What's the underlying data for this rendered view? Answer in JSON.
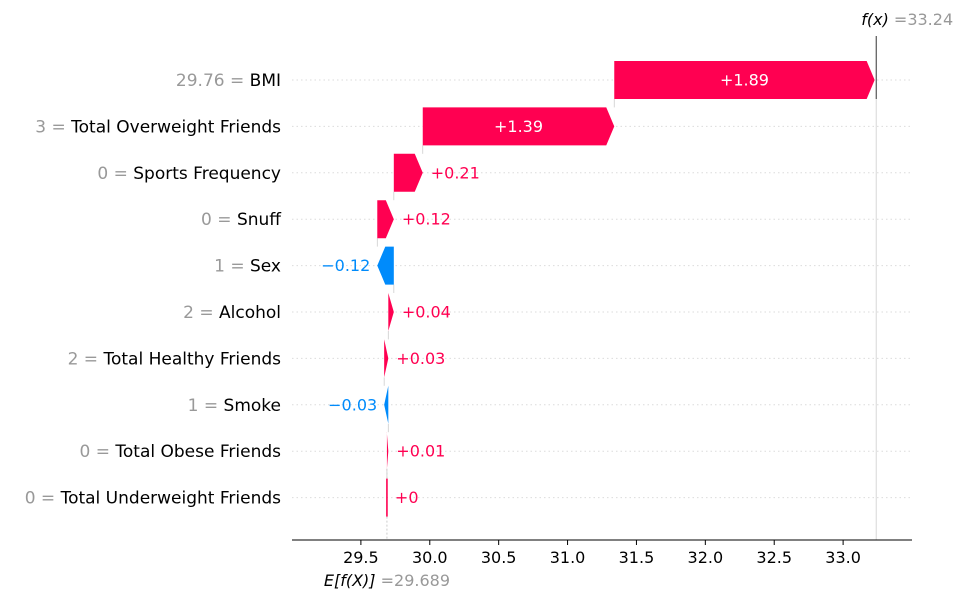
{
  "chart_data": {
    "type": "waterfall",
    "base_value": 29.689,
    "base_value_label": "29.689",
    "base_label": "E[f(X)]",
    "output_value": 33.24,
    "output_value_label": "33.24",
    "output_label": "f(x)",
    "equals_sign": "=",
    "features": [
      {
        "value": "29.76",
        "name": "BMI",
        "contribution": 1.89,
        "label": "+1.89"
      },
      {
        "value": "3",
        "name": "Total Overweight Friends",
        "contribution": 1.39,
        "label": "+1.39"
      },
      {
        "value": "0",
        "name": "Sports Frequency",
        "contribution": 0.21,
        "label": "+0.21"
      },
      {
        "value": "0",
        "name": "Snuff",
        "contribution": 0.12,
        "label": "+0.12"
      },
      {
        "value": "1",
        "name": "Sex",
        "contribution": -0.12,
        "label": "−0.12"
      },
      {
        "value": "2",
        "name": "Alcohol",
        "contribution": 0.04,
        "label": "+0.04"
      },
      {
        "value": "2",
        "name": "Total Healthy Friends",
        "contribution": 0.03,
        "label": "+0.03"
      },
      {
        "value": "1",
        "name": "Smoke",
        "contribution": -0.03,
        "label": "−0.03"
      },
      {
        "value": "0",
        "name": "Total Obese Friends",
        "contribution": 0.01,
        "label": "+0.01"
      },
      {
        "value": "0",
        "name": "Total Underweight Friends",
        "contribution": 0.0,
        "label": "+0"
      }
    ],
    "x_ticks": [
      "29.5",
      "30.0",
      "30.5",
      "31.0",
      "31.5",
      "32.0",
      "32.5",
      "33.0"
    ],
    "xlim": [
      29.0,
      33.5
    ],
    "colors": {
      "positive": "#ff0051",
      "negative": "#008bfb",
      "text": "#000000",
      "muted": "#999999",
      "grid": "#cccccc",
      "axis": "#000000"
    }
  }
}
